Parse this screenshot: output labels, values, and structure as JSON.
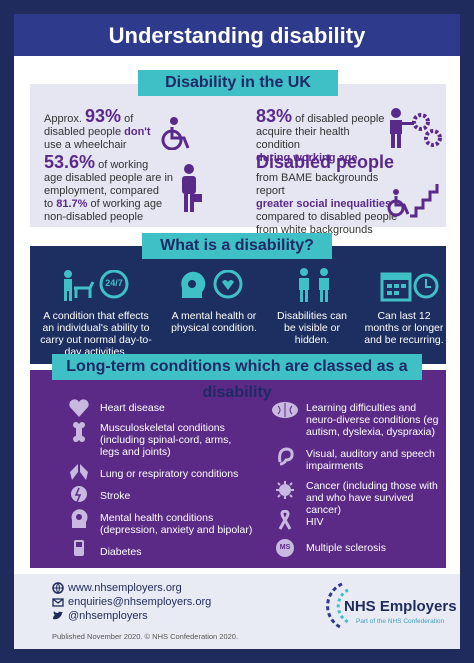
{
  "header": {
    "title": "Understanding disability"
  },
  "section_uk": {
    "banner": "Disability in the UK",
    "stat1": {
      "prefix": "Approx.",
      "value": "93%",
      "text_a": "of",
      "text_b": "disabled people",
      "emph": "don't",
      "text_c": "use a wheelchair"
    },
    "stat2": {
      "value": "83%",
      "text_a": "of disabled people",
      "text_b": "acquire their health condition",
      "emph": "during working age"
    },
    "stat3": {
      "value": "53.6%",
      "text_a": "of working",
      "text_b": "age disabled people are in",
      "text_c": "employment, compared",
      "text_d": "to",
      "emph": "81.7%",
      "text_e": "of working age",
      "text_f": "non-disabled people"
    },
    "stat4": {
      "value": "Disabled people",
      "text_a": "from BAME backgrounds report",
      "emph_a": "greater social inequalities",
      "text_b": "compared to disabled people",
      "text_c": "from white backgrounds"
    }
  },
  "section_what": {
    "banner": "What is a disability?",
    "items": [
      {
        "text": "A condition that effects an individual's ability to carry out normal day-to-day activities."
      },
      {
        "text": "A mental health or physical condition."
      },
      {
        "text": "Disabilities can be visible or hidden."
      },
      {
        "text": "Can last 12 months or longer and be recurring."
      }
    ],
    "clock_text": "24/7"
  },
  "section_conditions": {
    "banner": "Long-term conditions which are classed as a disability",
    "left": [
      {
        "label": "Heart disease"
      },
      {
        "label": "Musculoskeletal conditions (including spinal-cord, arms, legs and joints)"
      },
      {
        "label": "Lung or respiratory conditions"
      },
      {
        "label": "Stroke"
      },
      {
        "label": "Mental health conditions (depression, anxiety and bipolar)"
      },
      {
        "label": "Diabetes"
      }
    ],
    "right": [
      {
        "label": "Learning difficulties and neuro-diverse conditions (eg autism, dyslexia, dyspraxia)"
      },
      {
        "label": "Visual, auditory and speech impairments"
      },
      {
        "label": "Cancer (including those with and who have survived cancer)"
      },
      {
        "label": "HIV"
      },
      {
        "label": "Multiple sclerosis"
      }
    ],
    "ms_badge": "MS"
  },
  "footer": {
    "website": "www.nhsemployers.org",
    "email": "enquiries@nhsemployers.org",
    "twitter": "@nhsemployers",
    "published": "Published November 2020. © NHS Confederation 2020.",
    "logo_text": "NHS Employers",
    "logo_sub": "Part of the NHS Confederation",
    "colors": {
      "navy": "#1f2b5c",
      "teal": "#3fc0c7",
      "purple": "#5b2a86"
    }
  }
}
